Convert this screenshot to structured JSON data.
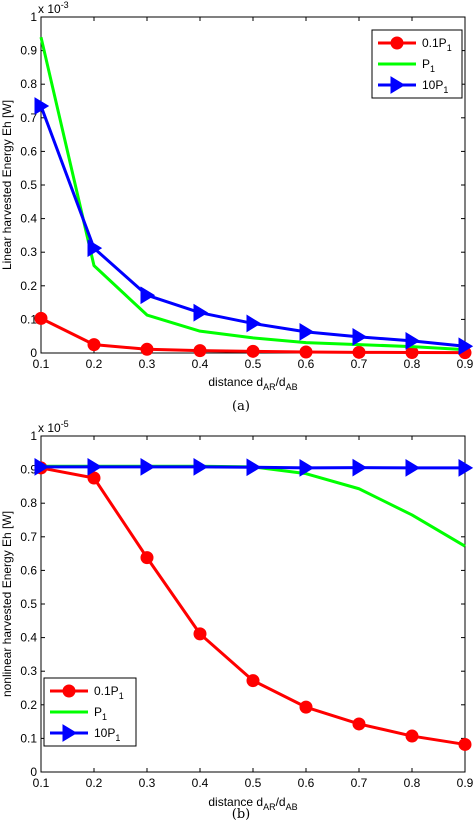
{
  "chart_data": [
    {
      "type": "line",
      "caption": "(a)",
      "ylabel": "Linear harvested Energy Eh [W]",
      "xlabel": {
        "main": "distance d",
        "sub1": "AR",
        "slash": "/d",
        "sub2": "AB"
      },
      "exponent": {
        "base": "x 10",
        "power": "-3"
      },
      "xlim": [
        0.1,
        0.9
      ],
      "ylim": [
        0,
        1
      ],
      "xticks": [
        "0.1",
        "0.2",
        "0.3",
        "0.4",
        "0.5",
        "0.6",
        "0.7",
        "0.8",
        "0.9"
      ],
      "yticks": [
        "0",
        "0.1",
        "0.2",
        "0.3",
        "0.4",
        "0.5",
        "0.6",
        "0.7",
        "0.8",
        "0.9",
        "1"
      ],
      "legend_position": "top-right",
      "x": [
        0.1,
        0.2,
        0.3,
        0.4,
        0.5,
        0.6,
        0.7,
        0.8,
        0.9
      ],
      "series": [
        {
          "name": "0.1P",
          "sub": "1",
          "color": "#ff0000",
          "marker": "circle",
          "values": [
            0.103,
            0.025,
            0.011,
            0.007,
            0.005,
            0.003,
            0.002,
            0.0015,
            0.001
          ]
        },
        {
          "name": "P",
          "sub": "1",
          "color": "#00ff00",
          "marker": "none",
          "values": [
            0.94,
            0.26,
            0.113,
            0.065,
            0.045,
            0.031,
            0.025,
            0.019,
            0.01
          ]
        },
        {
          "name": "10P",
          "sub": "1",
          "color": "#0000ff",
          "marker": "triangle-right",
          "values": [
            0.735,
            0.312,
            0.172,
            0.12,
            0.088,
            0.063,
            0.048,
            0.036,
            0.02
          ]
        }
      ]
    },
    {
      "type": "line",
      "caption": "(b)",
      "ylabel": "nonlinear harvested Energy Eh [W]",
      "xlabel": {
        "main": "distance d",
        "sub1": "AR",
        "slash": "/d",
        "sub2": "AB"
      },
      "exponent": {
        "base": "x 10",
        "power": "-5"
      },
      "xlim": [
        0.1,
        0.9
      ],
      "ylim": [
        0,
        1
      ],
      "xticks": [
        "0.1",
        "0.2",
        "0.3",
        "0.4",
        "0.5",
        "0.6",
        "0.7",
        "0.8",
        "0.9"
      ],
      "yticks": [
        "0",
        "0.1",
        "0.2",
        "0.3",
        "0.4",
        "0.5",
        "0.6",
        "0.7",
        "0.8",
        "0.9",
        "1"
      ],
      "legend_position": "bottom-left",
      "x": [
        0.1,
        0.2,
        0.3,
        0.4,
        0.5,
        0.6,
        0.7,
        0.8,
        0.9
      ],
      "series": [
        {
          "name": "0.1P",
          "sub": "1",
          "color": "#ff0000",
          "marker": "circle",
          "values": [
            0.905,
            0.875,
            0.638,
            0.411,
            0.272,
            0.193,
            0.143,
            0.107,
            0.082
          ]
        },
        {
          "name": "P",
          "sub": "1",
          "color": "#00ff00",
          "marker": "none",
          "values": [
            0.91,
            0.91,
            0.91,
            0.91,
            0.908,
            0.888,
            0.843,
            0.765,
            0.672
          ]
        },
        {
          "name": "10P",
          "sub": "1",
          "color": "#0000ff",
          "marker": "triangle-right",
          "values": [
            0.908,
            0.908,
            0.908,
            0.908,
            0.907,
            0.905,
            0.906,
            0.905,
            0.905
          ]
        }
      ]
    }
  ]
}
